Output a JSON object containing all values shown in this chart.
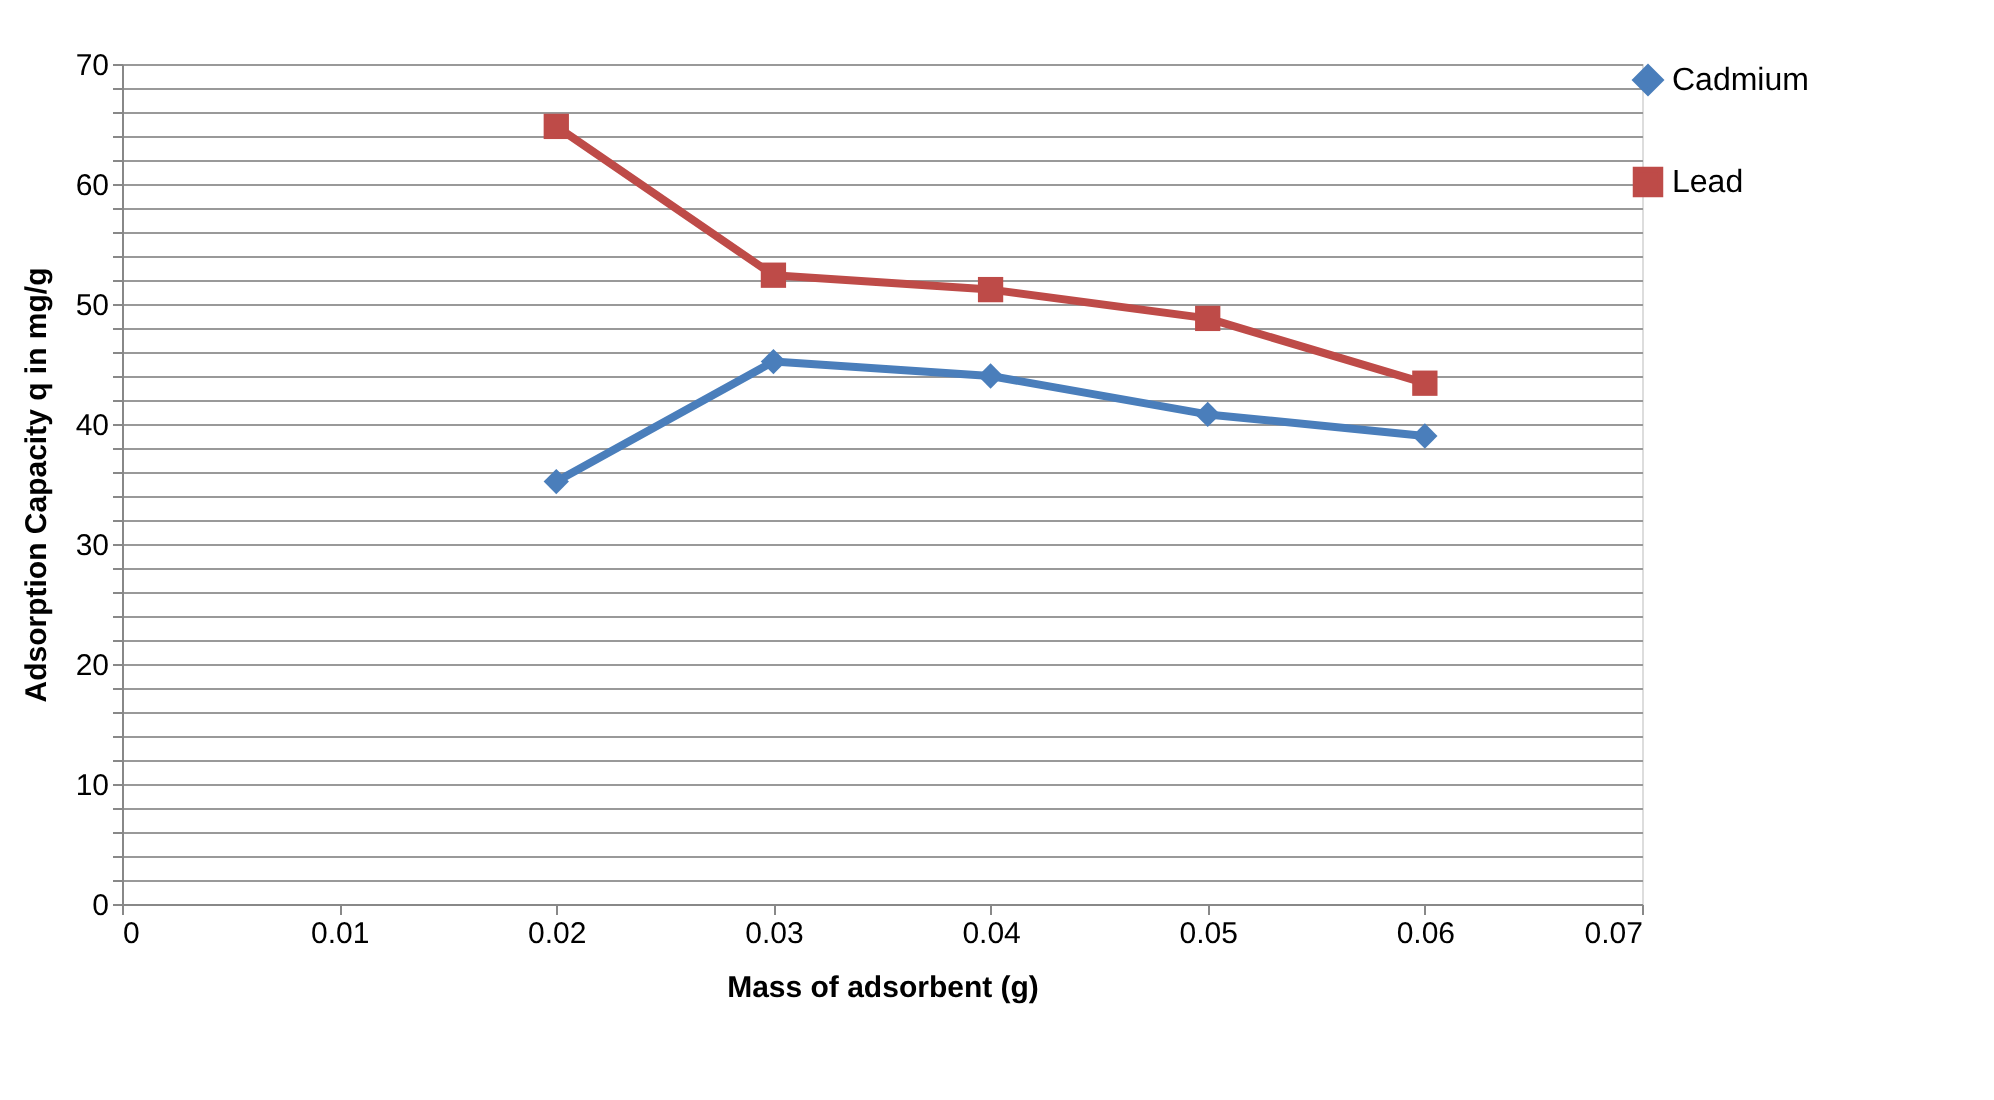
{
  "chart_data": {
    "type": "line",
    "xlabel": "Mass of adsorbent (g)",
    "ylabel": "Adsorption Capacity q in mg/g",
    "x": [
      0.02,
      0.03,
      0.04,
      0.05,
      0.06
    ],
    "series": [
      {
        "name": "Cadmium",
        "color": "#4a7ebb",
        "marker": "diamond",
        "values": [
          35.2,
          45.2,
          44.0,
          40.8,
          39.0
        ]
      },
      {
        "name": "Lead",
        "color": "#be4b48",
        "marker": "square",
        "values": [
          64.8,
          52.4,
          51.2,
          48.8,
          43.4
        ]
      }
    ],
    "xlim": [
      0,
      0.07
    ],
    "xticks": [
      0,
      0.01,
      0.02,
      0.03,
      0.04,
      0.05,
      0.06,
      0.07
    ],
    "ylim": [
      0,
      70
    ],
    "yticks": [
      0,
      {
        "value": 2,
        "label": null
      },
      {
        "value": 4,
        "label": null
      },
      {
        "value": 6,
        "label": null
      },
      {
        "value": 8,
        "label": null
      },
      10,
      {
        "value": 12,
        "label": null
      },
      {
        "value": 14,
        "label": null
      },
      {
        "value": 16,
        "label": null
      },
      {
        "value": 18,
        "label": null
      },
      20,
      {
        "value": 22,
        "label": null
      },
      {
        "value": 24,
        "label": null
      },
      {
        "value": 26,
        "label": null
      },
      {
        "value": 28,
        "label": null
      },
      30,
      {
        "value": 32,
        "label": null
      },
      {
        "value": 34,
        "label": null
      },
      {
        "value": 36,
        "label": null
      },
      {
        "value": 38,
        "label": null
      },
      40,
      {
        "value": 42,
        "label": null
      },
      {
        "value": 44,
        "label": null
      },
      {
        "value": 46,
        "label": null
      },
      {
        "value": 48,
        "label": null
      },
      50,
      {
        "value": 52,
        "label": null
      },
      {
        "value": 54,
        "label": null
      },
      {
        "value": 56,
        "label": null
      },
      {
        "value": 58,
        "label": null
      },
      60,
      {
        "value": 62,
        "label": null
      },
      {
        "value": 64,
        "label": null
      },
      {
        "value": 66,
        "label": null
      },
      {
        "value": 68,
        "label": null
      },
      70
    ],
    "grid": "y",
    "legend": "right",
    "line_style": "solid"
  }
}
